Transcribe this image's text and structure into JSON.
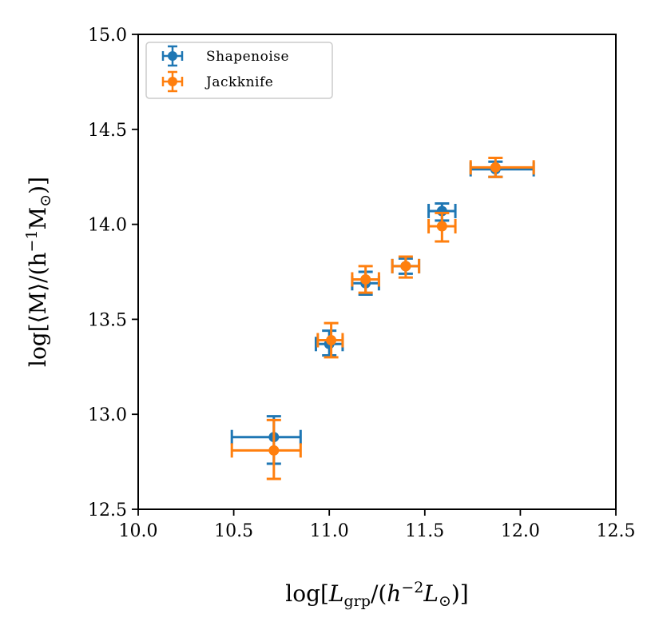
{
  "chart_data": {
    "type": "scatter",
    "title": "",
    "xlabel": "log[L_grp/(h^-2 L_⊙)]",
    "ylabel": "log[⟨M⟩/(h^-1 M_⊙)]",
    "xlim": [
      10.0,
      12.5
    ],
    "ylim": [
      12.5,
      15.0
    ],
    "xticks": [
      "10.0",
      "10.5",
      "11.0",
      "11.5",
      "12.0",
      "12.5"
    ],
    "yticks": [
      "12.5",
      "13.0",
      "13.5",
      "14.0",
      "14.5",
      "15.0"
    ],
    "grid": false,
    "legend_position": "top-left",
    "series": [
      {
        "name": "Shapenoise",
        "color": "#1f77b4",
        "points": [
          {
            "x": 10.71,
            "y": 12.88,
            "xlo": 10.49,
            "xhi": 10.85,
            "ylo": 12.74,
            "yhi": 12.99
          },
          {
            "x": 11.0,
            "y": 13.37,
            "xlo": 10.93,
            "xhi": 11.07,
            "ylo": 13.31,
            "yhi": 13.44
          },
          {
            "x": 11.19,
            "y": 13.69,
            "xlo": 11.12,
            "xhi": 11.26,
            "ylo": 13.63,
            "yhi": 13.75
          },
          {
            "x": 11.4,
            "y": 13.78,
            "xlo": 11.33,
            "xhi": 11.47,
            "ylo": 13.74,
            "yhi": 13.82
          },
          {
            "x": 11.59,
            "y": 14.07,
            "xlo": 11.52,
            "xhi": 11.66,
            "ylo": 14.02,
            "yhi": 14.11
          },
          {
            "x": 11.87,
            "y": 14.29,
            "xlo": 11.74,
            "xhi": 12.07,
            "ylo": 14.25,
            "yhi": 14.33
          }
        ]
      },
      {
        "name": "Jackknife",
        "color": "#ff7f0e",
        "points": [
          {
            "x": 10.71,
            "y": 12.81,
            "xlo": 10.49,
            "xhi": 10.85,
            "ylo": 12.66,
            "yhi": 12.97
          },
          {
            "x": 11.01,
            "y": 13.39,
            "xlo": 10.94,
            "xhi": 11.07,
            "ylo": 13.3,
            "yhi": 13.48
          },
          {
            "x": 11.19,
            "y": 13.71,
            "xlo": 11.12,
            "xhi": 11.26,
            "ylo": 13.64,
            "yhi": 13.78
          },
          {
            "x": 11.4,
            "y": 13.78,
            "xlo": 11.33,
            "xhi": 11.47,
            "ylo": 13.72,
            "yhi": 13.83
          },
          {
            "x": 11.59,
            "y": 13.99,
            "xlo": 11.52,
            "xhi": 11.66,
            "ylo": 13.91,
            "yhi": 14.06
          },
          {
            "x": 11.87,
            "y": 14.3,
            "xlo": 11.74,
            "xhi": 12.07,
            "ylo": 14.25,
            "yhi": 14.35
          }
        ]
      }
    ]
  }
}
